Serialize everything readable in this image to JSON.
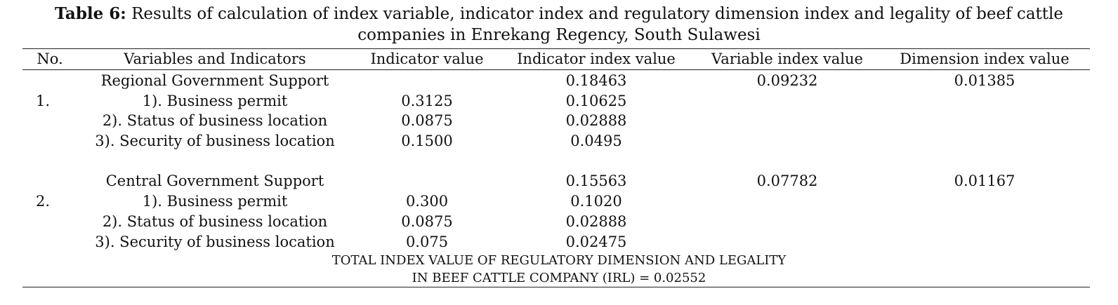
{
  "caption": {
    "label": "Table 6:",
    "line1": "Results of calculation of index variable, indicator index and regulatory dimension index and legality of beef cattle",
    "line2": "companies in Enrekang Regency, South Sulawesi"
  },
  "headers": [
    "No.",
    "Variables and Indicators",
    "Indicator value",
    "Indicator index value",
    "Variable index value",
    "Dimension index value"
  ],
  "groups": [
    {
      "no": "1.",
      "title": "Regional Government Support",
      "indicator_index": "0.18463",
      "variable_index": "0.09232",
      "dimension_index": "0.01385",
      "rows": [
        {
          "name": "1). Business permit",
          "value": "0.3125",
          "index": "0.10625"
        },
        {
          "name": "2). Status of business location",
          "value": "0.0875",
          "index": "0.02888"
        },
        {
          "name": "3). Security of business location",
          "value": "0.1500",
          "index": "0.0495"
        }
      ]
    },
    {
      "no": "2.",
      "title": "Central Government Support",
      "indicator_index": "0.15563",
      "variable_index": "0.07782",
      "dimension_index": "0.01167",
      "rows": [
        {
          "name": "1). Business permit",
          "value": "0.300",
          "index": "0.1020"
        },
        {
          "name": "2). Status of business location",
          "value": "0.0875",
          "index": "0.02888"
        },
        {
          "name": "3). Security of business location",
          "value": "0.075",
          "index": "0.02475"
        }
      ]
    }
  ],
  "total": {
    "line1": "TOTAL INDEX VALUE OF REGULATORY DIMENSION AND LEGALITY",
    "line2": "IN BEEF CATTLE COMPANY (IRL) = 0.02552"
  }
}
